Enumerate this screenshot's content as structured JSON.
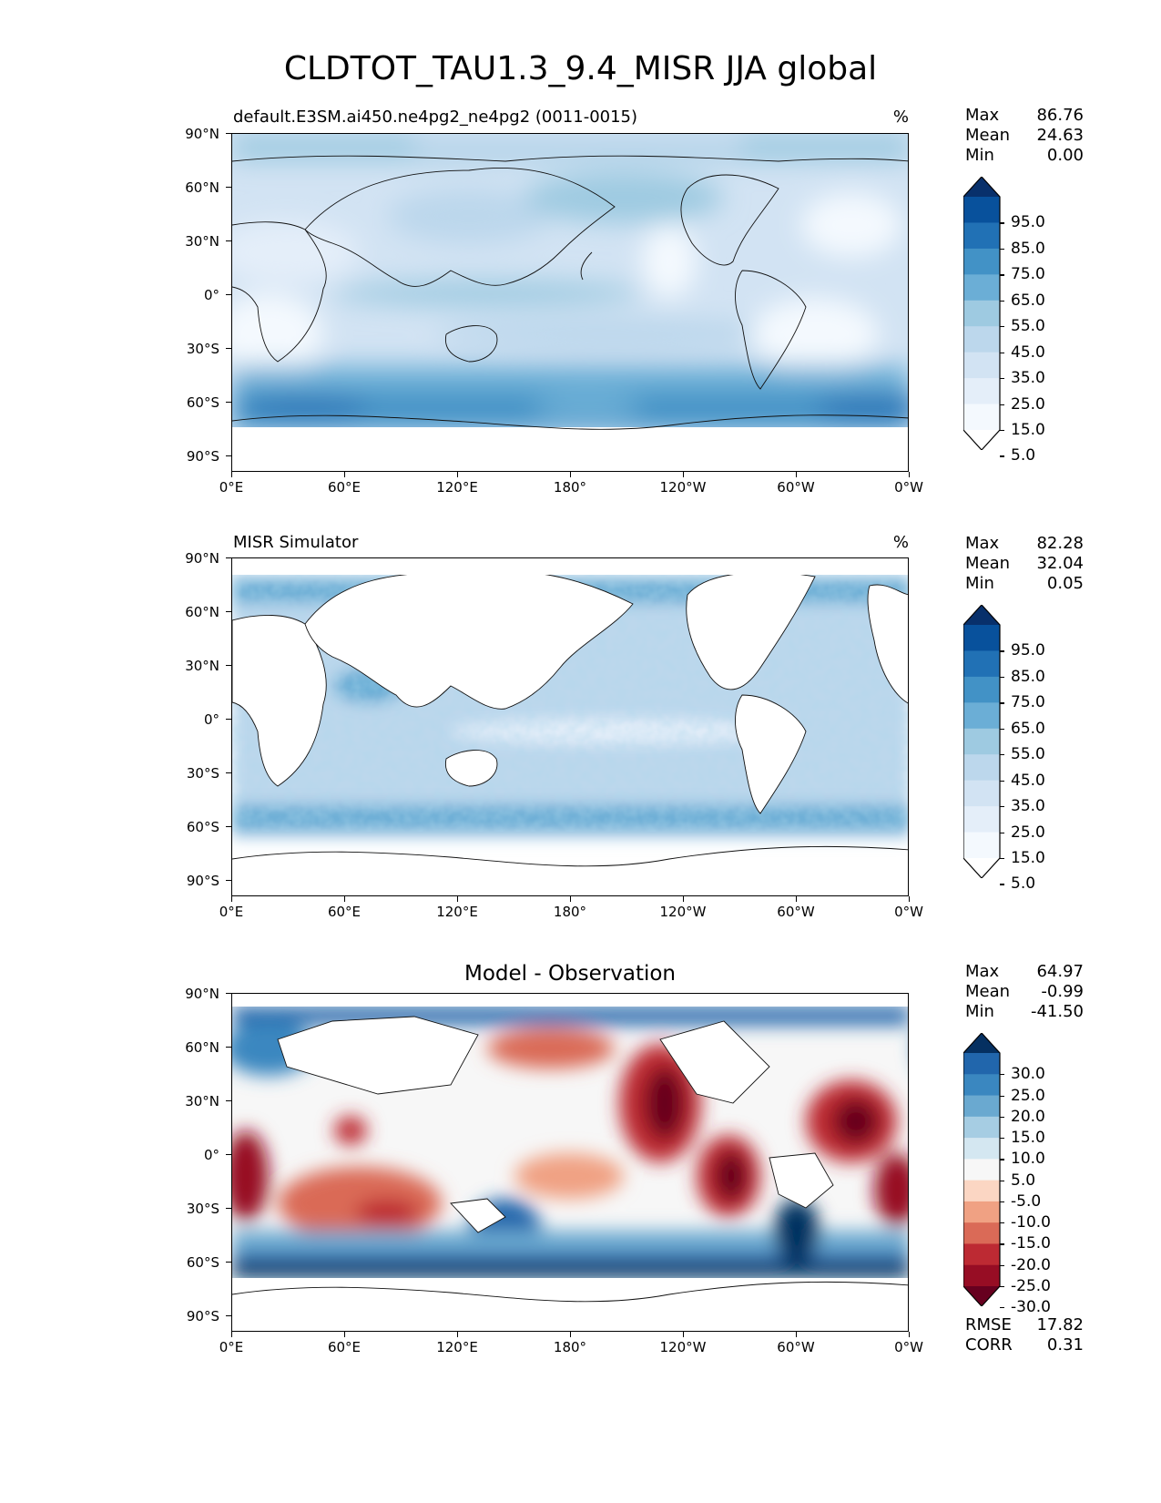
{
  "title": "CLDTOT_TAU1.3_9.4_MISR JJA global",
  "axes": {
    "lat_labels": [
      "90°N",
      "60°N",
      "30°N",
      "0°",
      "30°S",
      "60°S",
      "90°S"
    ],
    "lon_labels": [
      "0°E",
      "60°E",
      "120°E",
      "180°",
      "120°W",
      "60°W",
      "0°W"
    ]
  },
  "panels": [
    {
      "title_left": "default.E3SM.ai450.ne4pg2_ne4pg2 (0011-0015)",
      "title_right": "%",
      "title_center": "",
      "stats": [
        {
          "label": "Max",
          "value": "86.76"
        },
        {
          "label": "Mean",
          "value": "24.63"
        },
        {
          "label": "Min",
          "value": "0.00"
        }
      ],
      "colorbar": {
        "labels": [
          "95.0",
          "85.0",
          "75.0",
          "65.0",
          "55.0",
          "45.0",
          "35.0",
          "25.0",
          "15.0",
          "5.0"
        ],
        "colors": [
          "#08306b",
          "#08519c",
          "#2171b5",
          "#4292c6",
          "#6baed6",
          "#9ecae1",
          "#bcd7ec",
          "#d2e3f3",
          "#e4eef9",
          "#f4f9fe",
          "#ffffff"
        ]
      }
    },
    {
      "title_left": "MISR Simulator",
      "title_right": "%",
      "title_center": "",
      "stats": [
        {
          "label": "Max",
          "value": "82.28"
        },
        {
          "label": "Mean",
          "value": "32.04"
        },
        {
          "label": "Min",
          "value": "0.05"
        }
      ],
      "colorbar": {
        "labels": [
          "95.0",
          "85.0",
          "75.0",
          "65.0",
          "55.0",
          "45.0",
          "35.0",
          "25.0",
          "15.0",
          "5.0"
        ],
        "colors": [
          "#08306b",
          "#08519c",
          "#2171b5",
          "#4292c6",
          "#6baed6",
          "#9ecae1",
          "#bcd7ec",
          "#d2e3f3",
          "#e4eef9",
          "#f4f9fe",
          "#ffffff"
        ]
      }
    },
    {
      "title_left": "",
      "title_right": "",
      "title_center": "Model - Observation",
      "stats": [
        {
          "label": "Max",
          "value": "64.97"
        },
        {
          "label": "Mean",
          "value": "-0.99"
        },
        {
          "label": "Min",
          "value": "-41.50"
        }
      ],
      "colorbar": {
        "labels": [
          "30.0",
          "25.0",
          "20.0",
          "15.0",
          "10.0",
          "5.0",
          "-5.0",
          "-10.0",
          "-15.0",
          "-20.0",
          "-25.0",
          "-30.0"
        ],
        "colors": [
          "#053061",
          "#2166ac",
          "#3a87c0",
          "#6aa9d0",
          "#a6cde3",
          "#d4e7f1",
          "#f7f7f7",
          "#fbd6c3",
          "#f0a183",
          "#da6a57",
          "#bd2a33",
          "#970d24",
          "#67001f"
        ]
      },
      "metrics": [
        {
          "label": "RMSE",
          "value": "17.82"
        },
        {
          "label": "CORR",
          "value": "0.31"
        }
      ]
    }
  ]
}
